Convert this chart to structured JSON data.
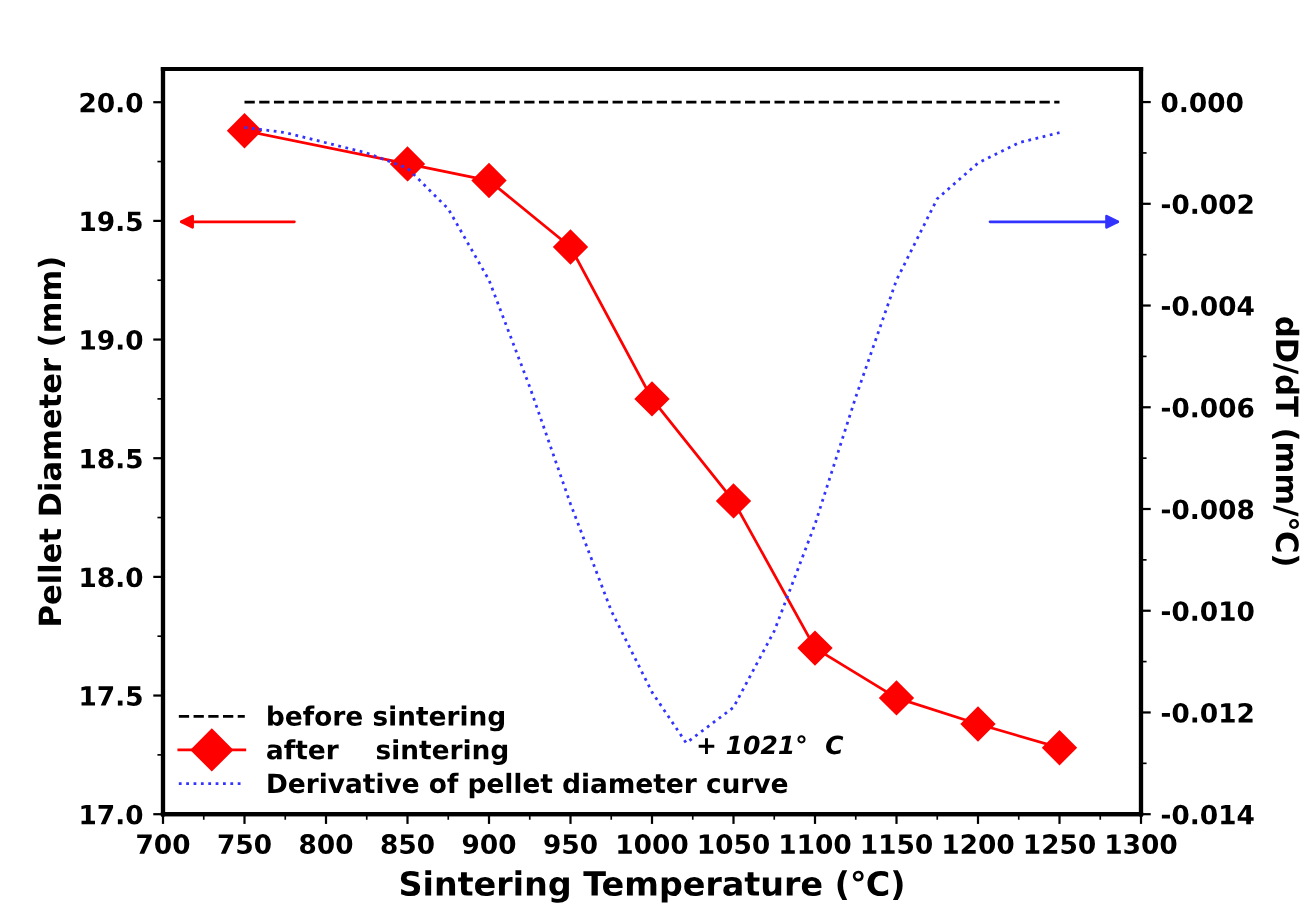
{
  "chart_data": {
    "type": "line",
    "xlabel": "Sintering Temperature (℃)",
    "ylabel": "Pellet Diameter (mm)",
    "y2label": "dD/dT (mm/℃)",
    "xlim": [
      700,
      1300
    ],
    "xticks": [
      700,
      750,
      800,
      850,
      900,
      950,
      1000,
      1050,
      1100,
      1150,
      1200,
      1250,
      1300
    ],
    "ylim": [
      17.0,
      20.14
    ],
    "yticks": [
      {
        "value": 17.0,
        "label": "17.0"
      },
      {
        "value": 17.5,
        "label": "17.5"
      },
      {
        "value": 18.0,
        "label": "18.0"
      },
      {
        "value": 18.5,
        "label": "18.5"
      },
      {
        "value": 19.0,
        "label": "19.0"
      },
      {
        "value": 19.5,
        "label": "19.5"
      },
      {
        "value": 20.0,
        "label": "20.0"
      }
    ],
    "y2lim": [
      -0.014,
      0.00065
    ],
    "y2ticks": [
      {
        "value": 0,
        "label": "0.000"
      },
      {
        "value": -0.002,
        "label": "-0.002"
      },
      {
        "value": -0.004,
        "label": "-0.004"
      },
      {
        "value": -0.006,
        "label": "-0.006"
      },
      {
        "value": -0.008,
        "label": "-0.008"
      },
      {
        "value": -0.01,
        "label": "-0.010"
      },
      {
        "value": -0.012,
        "label": "-0.012"
      },
      {
        "value": -0.014,
        "label": "-0.014"
      }
    ],
    "legend": "bottom left",
    "grid": false,
    "series": [
      {
        "name": "before sintering",
        "color": "#000000",
        "line_style": "dashed",
        "marker": "none",
        "x": [
          750,
          1250
        ],
        "values": [
          20.0,
          20.0
        ]
      },
      {
        "name": "after    sintering",
        "color": "#ff0000",
        "line_style": "solid",
        "marker": "diamond",
        "x": [
          750,
          850,
          900,
          950,
          1000,
          1050,
          1100,
          1150,
          1200,
          1250
        ],
        "values": [
          19.88,
          19.74,
          19.67,
          19.39,
          18.75,
          18.32,
          17.7,
          17.49,
          17.38,
          17.28
        ]
      },
      {
        "name": "Derivative of pellet diameter curve",
        "color": "#3333ff",
        "line_style": "dotted",
        "marker": "none",
        "axis": "y2",
        "x": [
          750,
          775,
          800,
          825,
          850,
          875,
          900,
          925,
          950,
          975,
          1000,
          1021,
          1050,
          1075,
          1100,
          1125,
          1150,
          1175,
          1200,
          1225,
          1250
        ],
        "values": [
          -0.0005,
          -0.0006,
          -0.0008,
          -0.001,
          -0.0013,
          -0.0021,
          -0.0035,
          -0.0056,
          -0.0079,
          -0.01,
          -0.0116,
          -0.0126,
          -0.0119,
          -0.0104,
          -0.0083,
          -0.0058,
          -0.0035,
          -0.0019,
          -0.0012,
          -0.0008,
          -0.0006
        ]
      }
    ],
    "annotations": [
      "+ 1021°  C"
    ]
  }
}
